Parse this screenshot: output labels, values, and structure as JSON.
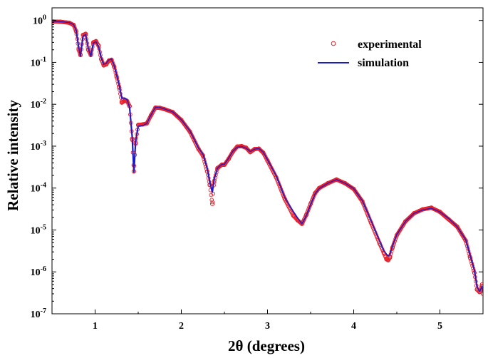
{
  "chart_data": {
    "type": "scatter",
    "xlabel": "2θ (degrees)",
    "ylabel": "Relative intensity",
    "xlim": [
      0.5,
      5.5
    ],
    "ylim": [
      1e-07,
      2
    ],
    "yscale": "log",
    "grid": false,
    "legend_position": "top-right",
    "x_ticks": [
      1,
      2,
      3,
      4,
      5
    ],
    "x_tick_labels": [
      "1",
      "2",
      "3",
      "4",
      "5"
    ],
    "y_ticks": [
      {
        "value": 1,
        "base": "10",
        "exp": "0"
      },
      {
        "value": 0.1,
        "base": "10",
        "exp": "-1"
      },
      {
        "value": 0.01,
        "base": "10",
        "exp": "-2"
      },
      {
        "value": 0.001,
        "base": "10",
        "exp": "-3"
      },
      {
        "value": 0.0001,
        "base": "10",
        "exp": "-4"
      },
      {
        "value": 1e-05,
        "base": "10",
        "exp": "-5"
      },
      {
        "value": 1e-06,
        "base": "10",
        "exp": "-6"
      },
      {
        "value": 1e-07,
        "base": "10",
        "exp": "-7"
      }
    ],
    "series": [
      {
        "name": "experimental",
        "style": "markers",
        "marker": "open-circle",
        "color": "#e8202a",
        "x": [
          0.5,
          0.6,
          0.7,
          0.75,
          0.78,
          0.81,
          0.83,
          0.86,
          0.89,
          0.92,
          0.95,
          0.98,
          1.01,
          1.04,
          1.07,
          1.1,
          1.13,
          1.16,
          1.19,
          1.22,
          1.25,
          1.28,
          1.31,
          1.34,
          1.37,
          1.4,
          1.43,
          1.45,
          1.47,
          1.5,
          1.55,
          1.6,
          1.65,
          1.7,
          1.75,
          1.8,
          1.9,
          2.0,
          2.1,
          2.2,
          2.25,
          2.3,
          2.33,
          2.36,
          2.38,
          2.42,
          2.47,
          2.5,
          2.55,
          2.6,
          2.65,
          2.7,
          2.75,
          2.8,
          2.85,
          2.9,
          2.95,
          3.0,
          3.1,
          3.2,
          3.3,
          3.35,
          3.4,
          3.45,
          3.5,
          3.55,
          3.6,
          3.7,
          3.8,
          3.9,
          4.0,
          4.1,
          4.2,
          4.3,
          4.35,
          4.38,
          4.4,
          4.42,
          4.45,
          4.5,
          4.6,
          4.7,
          4.8,
          4.9,
          5.0,
          5.1,
          5.2,
          5.3,
          5.35,
          5.4,
          5.43,
          5.46,
          5.49,
          5.5
        ],
        "y": [
          0.95,
          0.93,
          0.88,
          0.78,
          0.55,
          0.2,
          0.15,
          0.45,
          0.48,
          0.2,
          0.15,
          0.3,
          0.32,
          0.25,
          0.12,
          0.085,
          0.09,
          0.11,
          0.115,
          0.08,
          0.045,
          0.025,
          0.011,
          0.012,
          0.012,
          0.009,
          0.0015,
          0.00025,
          0.0012,
          0.0032,
          0.0033,
          0.0035,
          0.0055,
          0.0083,
          0.0082,
          0.0077,
          0.0065,
          0.0042,
          0.0022,
          0.00085,
          0.0006,
          0.00025,
          0.00012,
          4.2e-05,
          0.00014,
          0.0003,
          0.00036,
          0.00036,
          0.0005,
          0.00075,
          0.00098,
          0.001,
          0.00092,
          0.00072,
          0.00085,
          0.00087,
          0.0007,
          0.00045,
          0.00018,
          5.5e-05,
          2.2e-05,
          1.7e-05,
          1.4e-05,
          2.3e-05,
          4.2e-05,
          7.5e-05,
          0.0001,
          0.00013,
          0.00016,
          0.00013,
          9.5e-05,
          4.8e-05,
          1.5e-05,
          4.8e-06,
          2.8e-06,
          2e-06,
          1.9e-06,
          2.2e-06,
          3.8e-06,
          7.5e-06,
          1.6e-05,
          2.5e-05,
          3.1e-05,
          3.4e-05,
          2.7e-05,
          1.8e-05,
          1.2e-05,
          5.5e-06,
          2.2e-06,
          9.5e-07,
          3.8e-07,
          3.3e-07,
          5e-07,
          3e-07
        ]
      },
      {
        "name": "simulation",
        "style": "line",
        "color": "#1a1ac8",
        "x": [
          0.5,
          0.6,
          0.7,
          0.75,
          0.78,
          0.81,
          0.83,
          0.86,
          0.89,
          0.92,
          0.95,
          0.98,
          1.01,
          1.04,
          1.07,
          1.1,
          1.13,
          1.16,
          1.19,
          1.22,
          1.25,
          1.28,
          1.31,
          1.34,
          1.37,
          1.4,
          1.43,
          1.45,
          1.47,
          1.5,
          1.55,
          1.6,
          1.65,
          1.7,
          1.75,
          1.8,
          1.9,
          2.0,
          2.1,
          2.2,
          2.25,
          2.3,
          2.33,
          2.36,
          2.38,
          2.42,
          2.47,
          2.5,
          2.55,
          2.6,
          2.65,
          2.7,
          2.75,
          2.8,
          2.85,
          2.9,
          2.95,
          3.0,
          3.1,
          3.2,
          3.3,
          3.35,
          3.4,
          3.45,
          3.5,
          3.55,
          3.6,
          3.7,
          3.8,
          3.9,
          4.0,
          4.1,
          4.2,
          4.3,
          4.35,
          4.38,
          4.4,
          4.42,
          4.45,
          4.5,
          4.6,
          4.7,
          4.8,
          4.9,
          5.0,
          5.1,
          5.2,
          5.3,
          5.35,
          5.4,
          5.43,
          5.46,
          5.49,
          5.5
        ],
        "y": [
          0.96,
          0.94,
          0.89,
          0.8,
          0.58,
          0.22,
          0.14,
          0.43,
          0.46,
          0.22,
          0.14,
          0.29,
          0.31,
          0.24,
          0.13,
          0.09,
          0.095,
          0.115,
          0.12,
          0.085,
          0.05,
          0.028,
          0.014,
          0.014,
          0.013,
          0.0085,
          0.0017,
          0.00024,
          0.0013,
          0.003,
          0.0031,
          0.0035,
          0.0056,
          0.0085,
          0.0084,
          0.0078,
          0.0066,
          0.0043,
          0.0023,
          0.0009,
          0.00065,
          0.0003,
          0.00014,
          8e-05,
          0.00016,
          0.0003,
          0.00037,
          0.00037,
          0.00052,
          0.00077,
          0.00095,
          0.00098,
          0.0009,
          0.00075,
          0.00085,
          0.00088,
          0.00072,
          0.00047,
          0.0002,
          6e-05,
          2.7e-05,
          1.9e-05,
          1.4e-05,
          2.2e-05,
          4e-05,
          7.2e-05,
          9.8e-05,
          0.00013,
          0.00016,
          0.00013,
          9.7e-05,
          5e-05,
          1.7e-05,
          5.5e-06,
          3.2e-06,
          2.6e-06,
          2.4e-06,
          2.6e-06,
          4.2e-06,
          7.8e-06,
          1.6e-05,
          2.5e-05,
          3e-05,
          3.3e-05,
          2.7e-05,
          1.9e-05,
          1.2e-05,
          5.8e-06,
          2.5e-06,
          1.1e-06,
          4.5e-07,
          3.4e-07,
          4.5e-07,
          3.2e-07
        ]
      }
    ]
  }
}
